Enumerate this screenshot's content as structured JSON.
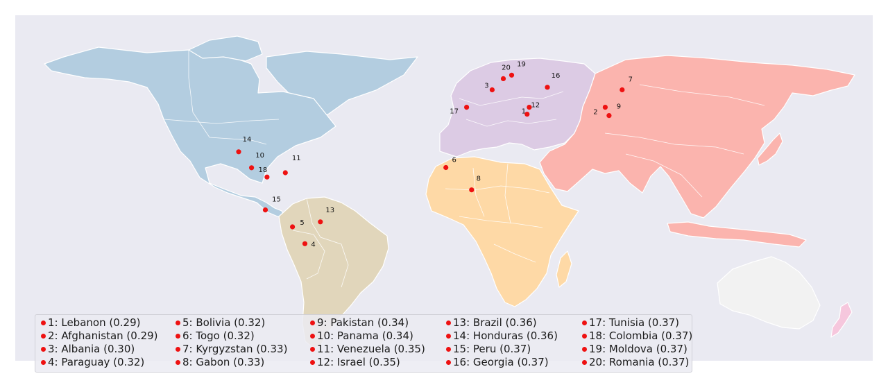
{
  "colors": {
    "background": "#eaeaf2",
    "north_america": "#b3cde0",
    "south_america": "#e1d6bb",
    "europe": "#dccbe4",
    "africa": "#fed9a6",
    "asia": "#fbb4ae",
    "oceania": "#f2f2f2",
    "new_zealand": "#f6c7dd",
    "marker": "#ee1111"
  },
  "markers": [
    {
      "rank": 1,
      "country": "Lebanon",
      "score": 0.29,
      "label": "1",
      "lon": 35.8,
      "lat": 33.9
    },
    {
      "rank": 2,
      "country": "Afghanistan",
      "score": 0.29,
      "label": "2",
      "lon": 67.7,
      "lat": 33.9
    },
    {
      "rank": 3,
      "country": "Albania",
      "score": 0.3,
      "label": "3",
      "lon": 20.2,
      "lat": 41.2
    },
    {
      "rank": 4,
      "country": "Paraguay",
      "score": 0.32,
      "label": "4",
      "lon": -58.4,
      "lat": -23.4
    },
    {
      "rank": 5,
      "country": "Bolivia",
      "score": 0.32,
      "label": "5",
      "lon": -63.6,
      "lat": -16.3
    },
    {
      "rank": 6,
      "country": "Togo",
      "score": 0.32,
      "label": "6",
      "lon": 0.8,
      "lat": 8.6
    },
    {
      "rank": 7,
      "country": "Kyrgyzstan",
      "score": 0.33,
      "label": "7",
      "lon": 74.8,
      "lat": 41.2
    },
    {
      "rank": 8,
      "country": "Gabon",
      "score": 0.33,
      "label": "8",
      "lon": 11.6,
      "lat": -0.8
    },
    {
      "rank": 9,
      "country": "Pakistan",
      "score": 0.34,
      "label": "9",
      "lon": 69.3,
      "lat": 30.4
    },
    {
      "rank": 10,
      "country": "Panama",
      "score": 0.34,
      "label": "10",
      "lon": -80.8,
      "lat": 8.5
    },
    {
      "rank": 11,
      "country": "Venezuela",
      "score": 0.35,
      "label": "11",
      "lon": -66.6,
      "lat": 6.4
    },
    {
      "rank": 12,
      "country": "Israel",
      "score": 0.35,
      "label": "12",
      "lon": 34.9,
      "lat": 31.0
    },
    {
      "rank": 13,
      "country": "Brazil",
      "score": 0.36,
      "label": "13",
      "lon": -51.9,
      "lat": -14.2
    },
    {
      "rank": 14,
      "country": "Honduras",
      "score": 0.36,
      "label": "14",
      "lon": -86.2,
      "lat": 15.2
    },
    {
      "rank": 15,
      "country": "Peru",
      "score": 0.37,
      "label": "15",
      "lon": -75.0,
      "lat": -9.2
    },
    {
      "rank": 16,
      "country": "Georgia",
      "score": 0.37,
      "label": "16",
      "lon": 43.4,
      "lat": 42.3
    },
    {
      "rank": 17,
      "country": "Tunisia",
      "score": 0.37,
      "label": "17",
      "lon": 9.5,
      "lat": 33.9
    },
    {
      "rank": 18,
      "country": "Colombia",
      "score": 0.37,
      "label": "18",
      "lon": -74.3,
      "lat": 4.6
    },
    {
      "rank": 19,
      "country": "Moldova",
      "score": 0.37,
      "label": "19",
      "lon": 28.4,
      "lat": 47.4
    },
    {
      "rank": 20,
      "country": "Romania",
      "score": 0.37,
      "label": "20",
      "lon": 24.9,
      "lat": 45.9
    }
  ],
  "legend": [
    [
      "1: Lebanon (0.29)",
      "2: Afghanistan (0.29)",
      "3: Albania (0.30)",
      "4: Paraguay (0.32)"
    ],
    [
      "5: Bolivia (0.32)",
      "6: Togo (0.32)",
      "7: Kyrgyzstan (0.33)",
      "8: Gabon (0.33)"
    ],
    [
      "9: Pakistan (0.34)",
      "10: Panama (0.34)",
      "11: Venezuela (0.35)",
      "12: Israel (0.35)"
    ],
    [
      "13: Brazil (0.36)",
      "14: Honduras (0.36)",
      "15: Peru (0.37)",
      "16: Georgia (0.37)"
    ],
    [
      "17: Tunisia (0.37)",
      "18: Colombia (0.37)",
      "19: Moldova (0.37)",
      "20: Romania (0.37)"
    ]
  ]
}
